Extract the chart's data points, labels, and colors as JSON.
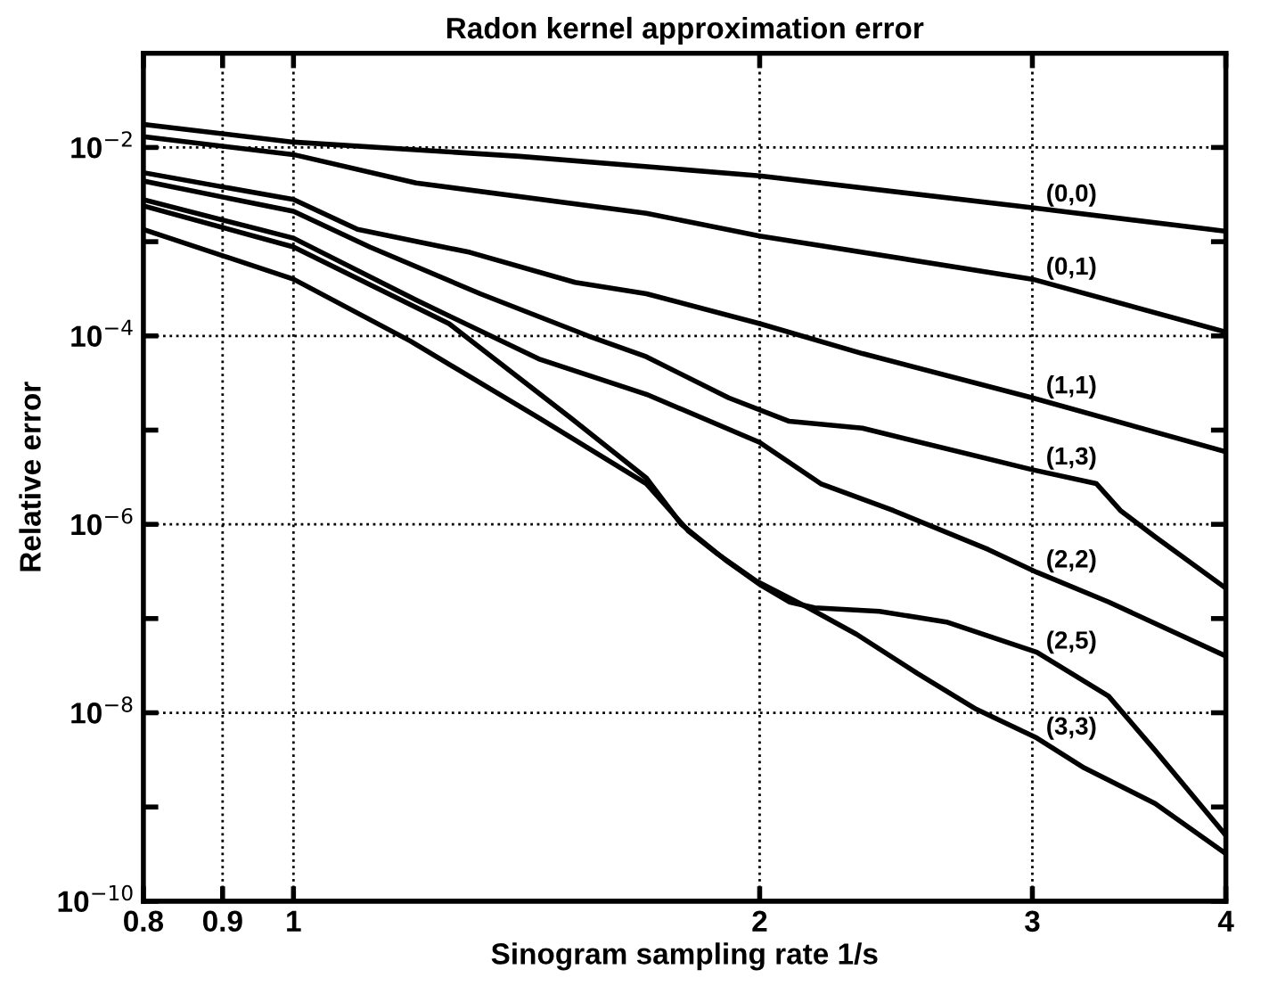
{
  "chart_data": {
    "type": "line",
    "title": "Radon kernel approximation error",
    "xlabel": "Sinogram sampling rate 1/s",
    "ylabel": "Relative error",
    "log": "xy",
    "grid": true,
    "line_style": "solid",
    "marker": "none",
    "xlim": [
      0.8,
      4
    ],
    "xticks": [
      0.8,
      0.9,
      1,
      2,
      3,
      4
    ],
    "ylim": [
      1e-10,
      0.1
    ],
    "yticks": [
      {
        "value": 1e-10,
        "label": "10$^{−10}$"
      },
      {
        "value": 1e-09,
        "label": null
      },
      {
        "value": 1e-08,
        "label": "10$^{−8}$"
      },
      {
        "value": 1e-07,
        "label": null
      },
      {
        "value": 1e-06,
        "label": "10$^{−6}$"
      },
      {
        "value": 1e-05,
        "label": null
      },
      {
        "value": 0.0001,
        "label": "10$^{−4}$"
      },
      {
        "value": 0.001,
        "label": null
      },
      {
        "value": 0.01,
        "label": "10$^{−2}$"
      }
    ],
    "series": [
      {
        "name": "(0,0)",
        "color": "#000000",
        "x": [
          0.8,
          1.0,
          1.4,
          2,
          3,
          4
        ],
        "values": [
          0.0176,
          0.0114,
          0.00805,
          0.005,
          0.00229,
          0.00129
        ]
      },
      {
        "name": "(0,1)",
        "color": "#000000",
        "x": [
          0.8,
          1.0,
          1.2,
          1.69,
          2,
          3,
          4
        ],
        "values": [
          0.013,
          0.0084,
          0.0042,
          0.002,
          0.00115,
          0.0004,
          0.00011
        ]
      },
      {
        "name": "(1,1)",
        "color": "#000000",
        "x": [
          0.8,
          1.0,
          1.1,
          1.3,
          1.52,
          1.69,
          2,
          2.33,
          3,
          4
        ],
        "values": [
          0.0054,
          0.0028,
          0.00135,
          0.00077,
          0.00037,
          0.00028,
          0.000135,
          6.5e-05,
          2.2e-05,
          5.9e-06
        ]
      },
      {
        "name": "(1,3)",
        "color": "#000000",
        "x": [
          0.8,
          1.0,
          1.12,
          1.32,
          1.55,
          1.69,
          1.91,
          2.09,
          2.33,
          3,
          3.3,
          3.42,
          3.6,
          4
        ],
        "values": [
          0.0044,
          0.0021,
          0.00088,
          0.00028,
          0.0001,
          6e-05,
          2.2e-05,
          1.24e-05,
          1.05e-05,
          3.8e-06,
          2.7e-06,
          1.4e-06,
          7.4e-07,
          2.1e-07
        ]
      },
      {
        "name": "(2,2)",
        "color": "#000000",
        "x": [
          0.8,
          1.0,
          1.2,
          1.44,
          1.69,
          2,
          2.19,
          2.44,
          2.81,
          3.02,
          3.36,
          4
        ],
        "values": [
          0.0028,
          0.00109,
          0.00024,
          5.7e-05,
          2.4e-05,
          7.4e-06,
          2.7e-06,
          1.4e-06,
          5.4e-07,
          3.1e-07,
          1.5e-07,
          4e-08
        ]
      },
      {
        "name": "(2,5)",
        "color": "#000000",
        "x": [
          0.8,
          1.0,
          1.26,
          1.51,
          1.69,
          1.78,
          1.9,
          2.0,
          2.09,
          2.17,
          2.39,
          2.64,
          3.02,
          3.36,
          3.6,
          4
        ],
        "values": [
          0.0024,
          0.00088,
          0.000135,
          1.35e-05,
          3.1e-06,
          1e-06,
          4.2e-07,
          2.3e-07,
          1.5e-07,
          1.3e-07,
          1.19e-07,
          9.2e-08,
          4.4e-08,
          1.5e-08,
          4e-09,
          5e-10
        ]
      },
      {
        "name": "(3,3)",
        "color": "#000000",
        "x": [
          0.8,
          1.0,
          1.19,
          1.44,
          1.69,
          1.8,
          1.88,
          1.99,
          2.15,
          2.31,
          2.53,
          2.76,
          3.02,
          3.24,
          3.6,
          4
        ],
        "values": [
          0.00135,
          0.0004,
          8.8e-05,
          1.35e-05,
          2.7e-06,
          8.4e-07,
          4.8e-07,
          2.5e-07,
          1.3e-07,
          6.8e-08,
          2.6e-08,
          1.09e-08,
          5.4e-09,
          2.6e-09,
          1.09e-09,
          3.2e-10
        ]
      }
    ]
  }
}
